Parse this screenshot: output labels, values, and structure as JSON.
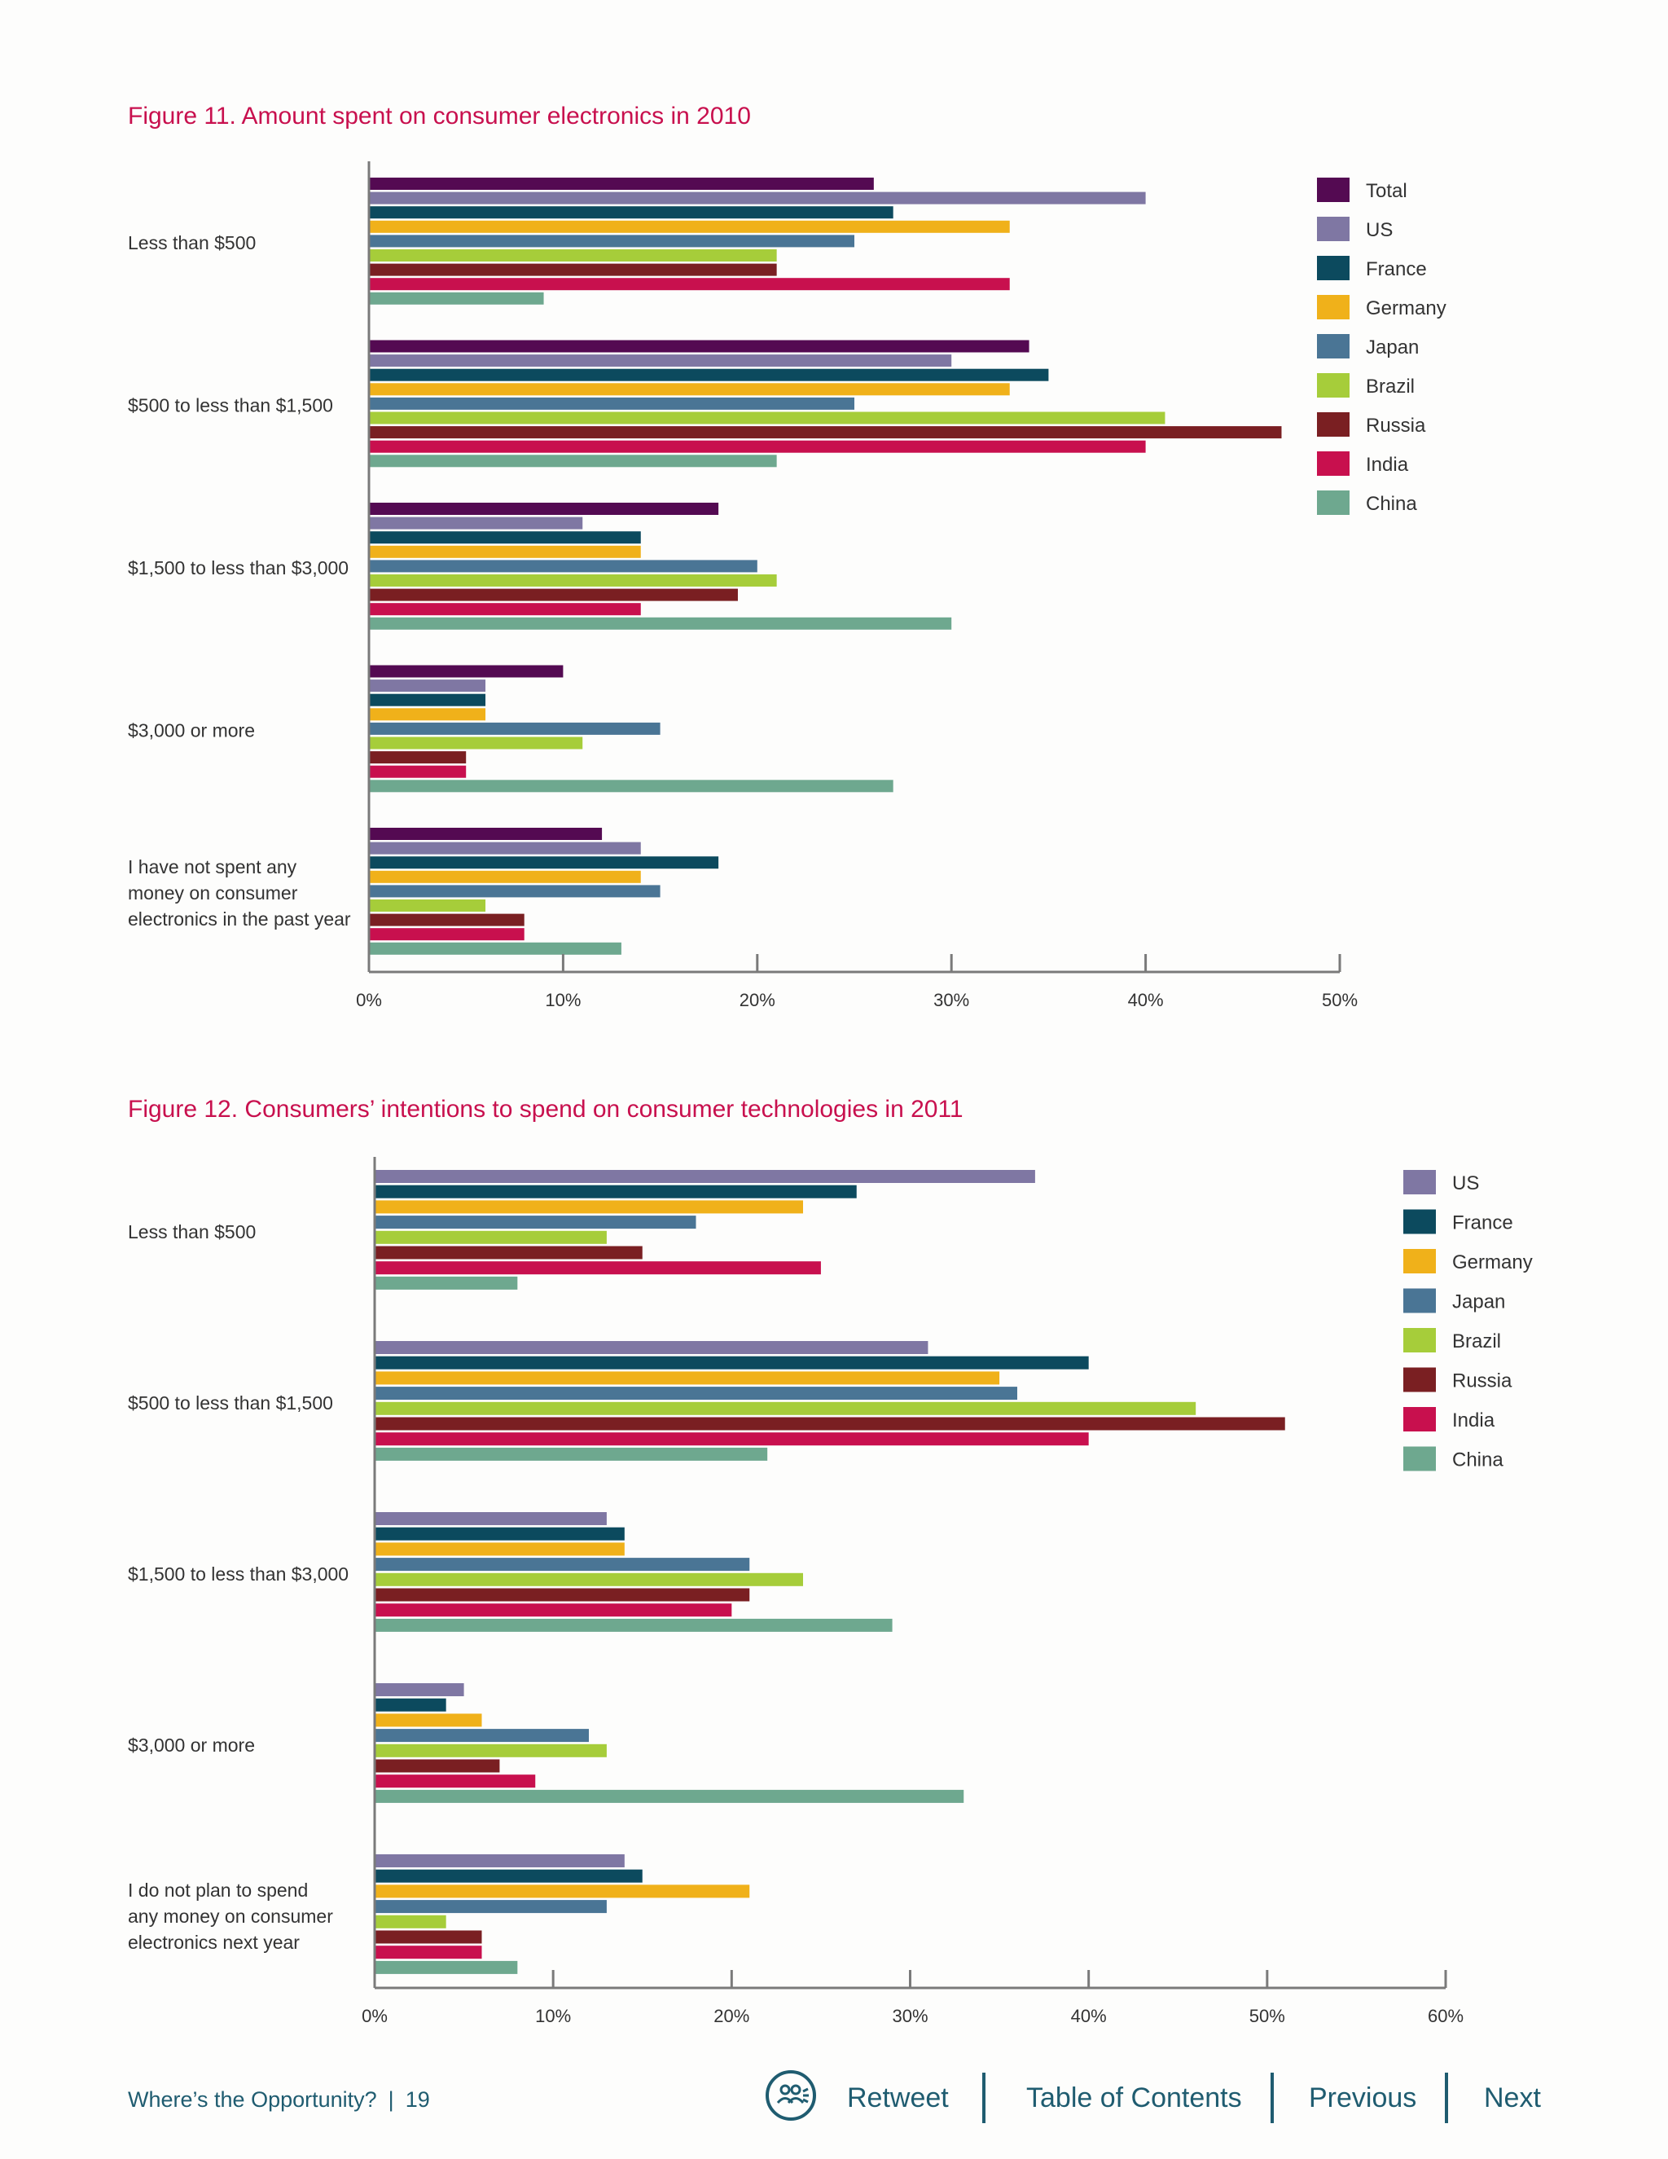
{
  "colors": {
    "title": "#c8104e",
    "axis": "#7a7a7a",
    "Total": "#540a52",
    "US": "#7f77a3",
    "France": "#0c4a5e",
    "Germany": "#f0b11a",
    "Japan": "#4a7595",
    "Brazil": "#a6cd3a",
    "Russia": "#7a1f22",
    "India": "#c8104e",
    "China": "#6ea88f",
    "footer": "#1f5c70"
  },
  "figure11": {
    "title": "Figure 11. Amount spent on consumer electronics in 2010"
  },
  "figure12": {
    "title": "Figure 12. Consumers’ intentions to spend on consumer technologies in 2011"
  },
  "chart_data": [
    {
      "type": "bar",
      "orientation": "horizontal",
      "title": "Figure 11. Amount spent on consumer electronics in 2010",
      "categories": [
        [
          "Less than $500"
        ],
        [
          "$500 to less than $1,500"
        ],
        [
          "$1,500 to less than $3,000"
        ],
        [
          "$3,000 or more"
        ],
        [
          "I have not spent any",
          "money on consumer",
          "electronics in the past year"
        ]
      ],
      "series": [
        {
          "name": "Total",
          "values": [
            26,
            34,
            18,
            10,
            12
          ]
        },
        {
          "name": "US",
          "values": [
            40,
            30,
            11,
            6,
            14
          ]
        },
        {
          "name": "France",
          "values": [
            27,
            35,
            14,
            6,
            18
          ]
        },
        {
          "name": "Germany",
          "values": [
            33,
            33,
            14,
            6,
            14
          ]
        },
        {
          "name": "Japan",
          "values": [
            25,
            25,
            20,
            15,
            15
          ]
        },
        {
          "name": "Brazil",
          "values": [
            21,
            41,
            21,
            11,
            6
          ]
        },
        {
          "name": "Russia",
          "values": [
            21,
            47,
            19,
            5,
            8
          ]
        },
        {
          "name": "India",
          "values": [
            33,
            40,
            14,
            5,
            8
          ]
        },
        {
          "name": "China",
          "values": [
            9,
            21,
            30,
            27,
            13
          ]
        }
      ],
      "xlim": [
        0,
        50
      ],
      "ticks": [
        "0%",
        "10%",
        "20%",
        "30%",
        "40%",
        "50%"
      ],
      "legend": "right"
    },
    {
      "type": "bar",
      "orientation": "horizontal",
      "title": "Figure 12. Consumers’ intentions to spend on consumer technologies in 2011",
      "categories": [
        [
          "Less than $500"
        ],
        [
          "$500 to less than $1,500"
        ],
        [
          "$1,500 to less than $3,000"
        ],
        [
          "$3,000 or more"
        ],
        [
          "I do not plan to spend",
          "any money on consumer",
          "electronics next year"
        ]
      ],
      "series": [
        {
          "name": "US",
          "values": [
            37,
            31,
            13,
            5,
            14
          ]
        },
        {
          "name": "France",
          "values": [
            27,
            40,
            14,
            4,
            15
          ]
        },
        {
          "name": "Germany",
          "values": [
            24,
            35,
            14,
            6,
            21
          ]
        },
        {
          "name": "Japan",
          "values": [
            18,
            36,
            21,
            12,
            13
          ]
        },
        {
          "name": "Brazil",
          "values": [
            13,
            46,
            24,
            13,
            4
          ]
        },
        {
          "name": "Russia",
          "values": [
            15,
            51,
            21,
            7,
            6
          ]
        },
        {
          "name": "India",
          "values": [
            25,
            40,
            20,
            9,
            6
          ]
        },
        {
          "name": "China",
          "values": [
            8,
            22,
            29,
            33,
            8
          ]
        }
      ],
      "xlim": [
        0,
        60
      ],
      "ticks": [
        "0%",
        "10%",
        "20%",
        "30%",
        "40%",
        "50%",
        "60%"
      ],
      "legend": "right"
    }
  ],
  "footer": {
    "doc_title": "Where’s the Opportunity?",
    "separator": "|",
    "page": "19",
    "retweet_icon": "people-circle-icon",
    "retweet": "Retweet",
    "toc": "Table of Contents",
    "previous": "Previous",
    "next": "Next"
  }
}
